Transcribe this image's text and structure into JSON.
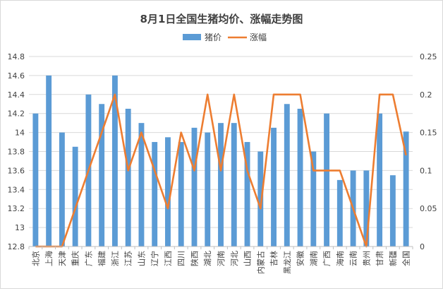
{
  "chart_data": {
    "type": "bar+line",
    "title": "8月1日全国生猪均价、涨幅走势图",
    "legend_position": "top",
    "grid": true,
    "categories": [
      "北京",
      "上海",
      "天津",
      "重庆",
      "广东",
      "福建",
      "浙江",
      "江苏",
      "山东",
      "辽宁",
      "江西",
      "四川",
      "陕西",
      "湖北",
      "河南",
      "河北",
      "山西",
      "内蒙古",
      "吉林",
      "黑龙江",
      "安徽",
      "湖南",
      "广西",
      "海南",
      "云南",
      "贵州",
      "甘肃",
      "新疆",
      "全国"
    ],
    "series": [
      {
        "name": "猪价",
        "type": "bar",
        "axis": "left",
        "color": "#5b9bd5",
        "values": [
          14.2,
          14.6,
          14.0,
          13.85,
          14.4,
          14.3,
          14.6,
          14.25,
          14.1,
          13.9,
          13.95,
          13.9,
          14.05,
          14.0,
          14.1,
          14.1,
          13.9,
          13.8,
          14.05,
          14.3,
          14.25,
          13.8,
          14.2,
          13.5,
          13.6,
          13.6,
          14.2,
          13.55,
          14.01
        ]
      },
      {
        "name": "涨幅",
        "type": "line",
        "axis": "right",
        "color": "#ed7d31",
        "values": [
          0,
          0,
          0,
          0.05,
          0.1,
          0.15,
          0.2,
          0.1,
          0.15,
          0.1,
          0.05,
          0.15,
          0.1,
          0.2,
          0.1,
          0.2,
          0.1,
          0.05,
          0.2,
          0.2,
          0.2,
          0.1,
          0.1,
          0.1,
          0.05,
          0,
          0.2,
          0.2,
          0.12
        ]
      }
    ],
    "y_left": {
      "min": 12.8,
      "max": 14.8,
      "step": 0.2,
      "ticks": [
        "12.8",
        "13",
        "13.2",
        "13.4",
        "13.6",
        "13.8",
        "14",
        "14.2",
        "14.4",
        "14.6",
        "14.8"
      ]
    },
    "y_right": {
      "min": 0,
      "max": 0.25,
      "step": 0.05,
      "ticks": [
        "0",
        "0.05",
        "0.1",
        "0.15",
        "0.2",
        "0.25"
      ]
    }
  }
}
